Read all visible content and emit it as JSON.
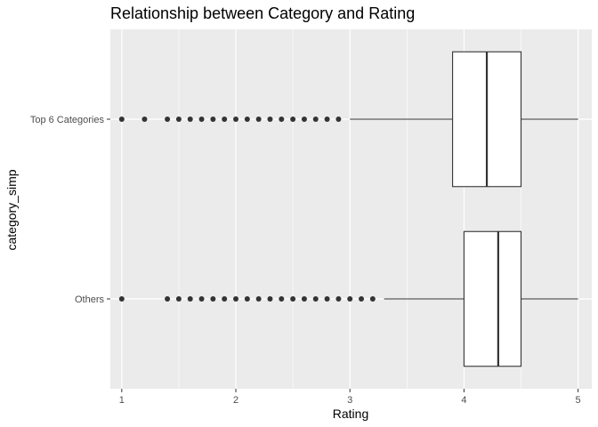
{
  "chart_data": {
    "type": "boxplot",
    "orientation": "horizontal",
    "title": "Relationship between Category and Rating",
    "xlabel": "Rating",
    "ylabel": "category_simp",
    "xlim": [
      0.9,
      5.12
    ],
    "xticks": [
      1,
      2,
      3,
      4,
      5
    ],
    "xtick_labels": [
      "1",
      "2",
      "3",
      "4",
      "5"
    ],
    "categories": [
      "Others",
      "Top 6 Categories"
    ],
    "grid": true,
    "colors": {
      "panel_background": "#ebebeb",
      "grid_major": "#ffffff",
      "box_fill": "#ffffff",
      "box_stroke": "#333333",
      "outlier": "#333333"
    },
    "series": [
      {
        "name": "Others",
        "whisker_low": 3.3,
        "q1": 4.0,
        "median": 4.3,
        "q3": 4.5,
        "whisker_high": 5.0,
        "outliers": [
          1.0,
          1.4,
          1.5,
          1.6,
          1.7,
          1.8,
          1.9,
          2.0,
          2.1,
          2.2,
          2.3,
          2.4,
          2.5,
          2.6,
          2.7,
          2.8,
          2.9,
          3.0,
          3.1,
          3.2
        ]
      },
      {
        "name": "Top 6 Categories",
        "whisker_low": 3.0,
        "q1": 3.9,
        "median": 4.2,
        "q3": 4.5,
        "whisker_high": 5.0,
        "outliers": [
          1.0,
          1.2,
          1.4,
          1.5,
          1.6,
          1.7,
          1.8,
          1.9,
          2.0,
          2.1,
          2.2,
          2.3,
          2.4,
          2.5,
          2.6,
          2.7,
          2.8,
          2.9
        ]
      }
    ]
  }
}
